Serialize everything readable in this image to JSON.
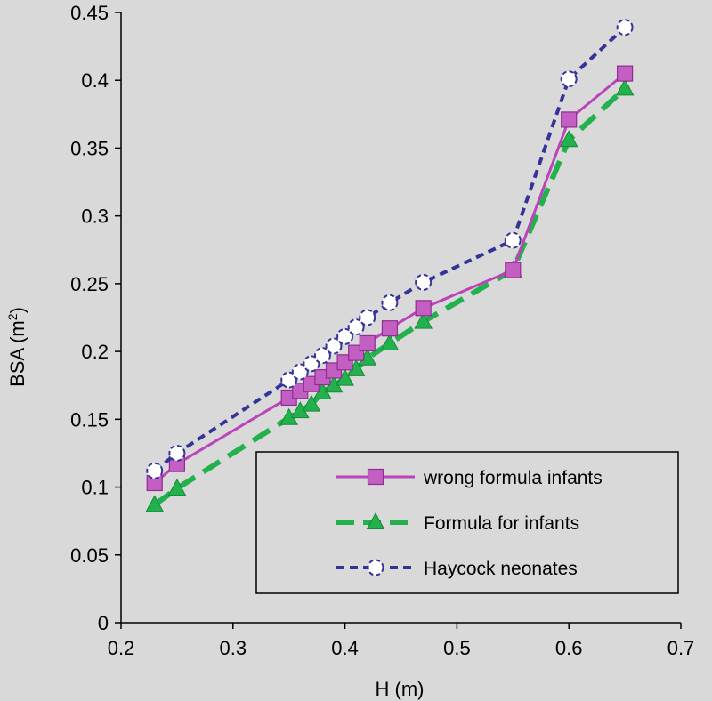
{
  "chart_data": {
    "type": "line",
    "xlabel": "H (m)",
    "ylabel_main": "BSA (m",
    "ylabel_sup": "2",
    "ylabel_close": ")",
    "xlim": [
      0.2,
      0.7
    ],
    "ylim": [
      0,
      0.45
    ],
    "xticks": [
      "0.2",
      "0.3",
      "0.4",
      "0.5",
      "0.6",
      "0.7"
    ],
    "yticks": [
      "0",
      "0.05",
      "0.1",
      "0.15",
      "0.2",
      "0.25",
      "0.3",
      "0.35",
      "0.4",
      "0.45"
    ],
    "legend_position": "bottom-right",
    "series": [
      {
        "name": "wrong formula infants",
        "color": "#bb44bb",
        "marker": "square",
        "line": "solid",
        "x": [
          0.23,
          0.25,
          0.35,
          0.36,
          0.37,
          0.38,
          0.39,
          0.4,
          0.41,
          0.42,
          0.44,
          0.47,
          0.55,
          0.6,
          0.65
        ],
        "y": [
          0.103,
          0.117,
          0.166,
          0.171,
          0.176,
          0.181,
          0.186,
          0.192,
          0.199,
          0.206,
          0.217,
          0.232,
          0.26,
          0.371,
          0.405
        ]
      },
      {
        "name": "Formula for infants",
        "color": "#22b14c",
        "marker": "triangle",
        "line": "dashed",
        "x": [
          0.23,
          0.25,
          0.35,
          0.36,
          0.37,
          0.38,
          0.39,
          0.4,
          0.41,
          0.42,
          0.44,
          0.47,
          0.55,
          0.6,
          0.65
        ],
        "y": [
          0.087,
          0.099,
          0.151,
          0.156,
          0.161,
          0.17,
          0.175,
          0.18,
          0.187,
          0.195,
          0.206,
          0.222,
          0.26,
          0.356,
          0.394
        ]
      },
      {
        "name": "Haycock neonates",
        "color": "#33339a",
        "marker": "circle",
        "line": "dotted",
        "x": [
          0.23,
          0.25,
          0.35,
          0.36,
          0.37,
          0.38,
          0.39,
          0.4,
          0.41,
          0.42,
          0.44,
          0.47,
          0.55,
          0.6,
          0.65
        ],
        "y": [
          0.112,
          0.125,
          0.179,
          0.185,
          0.191,
          0.197,
          0.204,
          0.211,
          0.218,
          0.225,
          0.236,
          0.251,
          0.282,
          0.401,
          0.439
        ]
      }
    ]
  }
}
